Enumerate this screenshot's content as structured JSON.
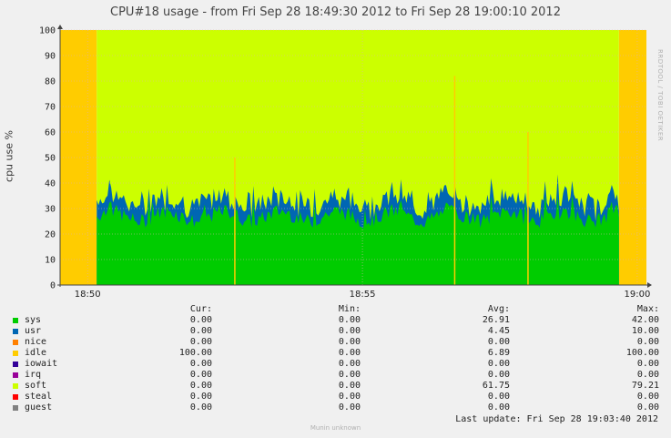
{
  "title": "CPU#18 usage - from Fri Sep 28 18:49:30 2012 to Fri Sep 28 19:00:10 2012",
  "vendor_text": "RRDTOOL / TOBI OETIKER",
  "footer": "Munin unknown",
  "chart_data": {
    "type": "area",
    "stacked": true,
    "ylabel": "cpu use %",
    "ylim": [
      0,
      100
    ],
    "yticks": [
      0,
      10,
      20,
      30,
      40,
      50,
      60,
      70,
      80,
      90,
      100
    ],
    "xlim": [
      "18:49:30",
      "19:00:10"
    ],
    "xticks": [
      "18:50",
      "18:55",
      "19:00"
    ],
    "grid": true,
    "series_note_order": [
      "sys",
      "usr",
      "soft",
      "idle"
    ],
    "sys_level": 27,
    "usr_level": 4.5
  },
  "legend": {
    "headers": [
      "Cur:",
      "Min:",
      "Avg:",
      "Max:"
    ],
    "rows": [
      {
        "name": "sys",
        "color": "#00cc00",
        "cur": "0.00",
        "min": "0.00",
        "avg": "26.91",
        "max": "42.00"
      },
      {
        "name": "usr",
        "color": "#0066b3",
        "cur": "0.00",
        "min": "0.00",
        "avg": "4.45",
        "max": "10.00"
      },
      {
        "name": "nice",
        "color": "#ff8000",
        "cur": "0.00",
        "min": "0.00",
        "avg": "0.00",
        "max": "0.00"
      },
      {
        "name": "idle",
        "color": "#ffcc00",
        "cur": "100.00",
        "min": "0.00",
        "avg": "6.89",
        "max": "100.00"
      },
      {
        "name": "iowait",
        "color": "#330099",
        "cur": "0.00",
        "min": "0.00",
        "avg": "0.00",
        "max": "0.00"
      },
      {
        "name": "irq",
        "color": "#990099",
        "cur": "0.00",
        "min": "0.00",
        "avg": "0.00",
        "max": "0.00"
      },
      {
        "name": "soft",
        "color": "#ccff00",
        "cur": "0.00",
        "min": "0.00",
        "avg": "61.75",
        "max": "79.21"
      },
      {
        "name": "steal",
        "color": "#ff0000",
        "cur": "0.00",
        "min": "0.00",
        "avg": "0.00",
        "max": "0.00"
      },
      {
        "name": "guest",
        "color": "#808080",
        "cur": "0.00",
        "min": "0.00",
        "avg": "0.00",
        "max": "0.00"
      }
    ],
    "last_update": "Last update:  Fri Sep 28 19:03:40 2012"
  }
}
